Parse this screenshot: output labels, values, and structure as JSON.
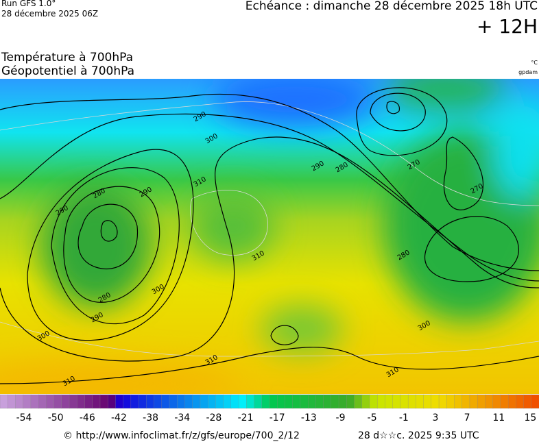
{
  "header": {
    "run": "Run GFS 1.0°",
    "run_date": "28 décembre 2025 06Z",
    "valid": "Echéance : dimanche 28 décembre 2025 18h UTC",
    "lead": "+ 12H"
  },
  "titles": {
    "line1": "Température à 700hPa",
    "line2": "Géopotentiel à 700hPa",
    "unit_temp": "°C",
    "unit_geo": "gpdam"
  },
  "colorbar": {
    "labels": [
      -54,
      -50,
      -46,
      -42,
      -38,
      -34,
      -28,
      -21,
      -17,
      -13,
      -9,
      -5,
      -1,
      3,
      7,
      11,
      15
    ]
  },
  "contour_labels": [
    290,
    300,
    310,
    290,
    280,
    290,
    280,
    290,
    300,
    300,
    310,
    310,
    310,
    310,
    290,
    280,
    270,
    270,
    280,
    300
  ],
  "footer": {
    "source": "© http://www.infoclimat.fr/z/gfs/europe/700_2/12",
    "generated": "28 d☆☆c. 2025  9:35 UTC"
  }
}
